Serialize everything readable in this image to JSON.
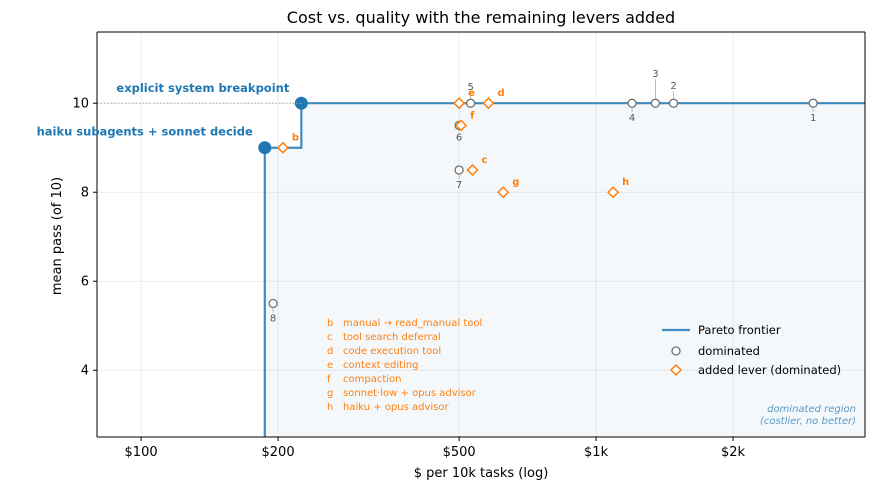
{
  "chart_data": {
    "type": "scatter",
    "title": "Cost vs. quality with the remaining levers added",
    "xlabel": "$ per 10k tasks (log)",
    "ylabel": "mean pass (of 10)",
    "x_scale": "log",
    "xlim": [
      80,
      3900
    ],
    "ylim": [
      2.5,
      11.6
    ],
    "x_ticks": [
      {
        "value": 100,
        "label": "$100"
      },
      {
        "value": 200,
        "label": "$200"
      },
      {
        "value": 500,
        "label": "$500"
      },
      {
        "value": 1000,
        "label": "$1k"
      },
      {
        "value": 2000,
        "label": "$2k"
      }
    ],
    "y_ticks": [
      {
        "value": 4,
        "label": "4"
      },
      {
        "value": 6,
        "label": "6"
      },
      {
        "value": 8,
        "label": "8"
      },
      {
        "value": 10,
        "label": "10"
      }
    ],
    "grid": true,
    "frontier": {
      "name": "Pareto frontier",
      "color": "#1f77b4",
      "points": [
        {
          "x": 187,
          "y": 9,
          "label": "haiku subagents + sonnet decide"
        },
        {
          "x": 225,
          "y": 10,
          "label": "explicit system breakpoint"
        }
      ]
    },
    "dominated": {
      "name": "dominated",
      "color": "#707070",
      "points": [
        {
          "label": "1",
          "x": 3000,
          "y": 10
        },
        {
          "label": "2",
          "x": 1480,
          "y": 10
        },
        {
          "label": "3",
          "x": 1350,
          "y": 10
        },
        {
          "label": "4",
          "x": 1200,
          "y": 10
        },
        {
          "label": "5",
          "x": 530,
          "y": 10
        },
        {
          "label": "6",
          "x": 500,
          "y": 9.5
        },
        {
          "label": "7",
          "x": 500,
          "y": 8.5
        },
        {
          "label": "8",
          "x": 195,
          "y": 5.5
        }
      ]
    },
    "levers": {
      "name": "added lever (dominated)",
      "color": "#ff7f0e",
      "points": [
        {
          "label": "b",
          "x": 205,
          "y": 9,
          "desc": "manual → read_manual tool"
        },
        {
          "label": "c",
          "x": 535,
          "y": 8.5,
          "desc": "tool search deferral"
        },
        {
          "label": "d",
          "x": 580,
          "y": 10,
          "desc": "code execution tool"
        },
        {
          "label": "e",
          "x": 500,
          "y": 10,
          "desc": "context editing"
        },
        {
          "label": "f",
          "x": 505,
          "y": 9.5,
          "desc": "compaction"
        },
        {
          "label": "g",
          "x": 625,
          "y": 8,
          "desc": "sonnet·low + opus advisor"
        },
        {
          "label": "h",
          "x": 1090,
          "y": 8,
          "desc": "haiku + opus advisor"
        }
      ]
    },
    "region_note_line1": "dominated region",
    "region_note_line2": "(costlier, no better)",
    "legend_position": "lower-right"
  }
}
